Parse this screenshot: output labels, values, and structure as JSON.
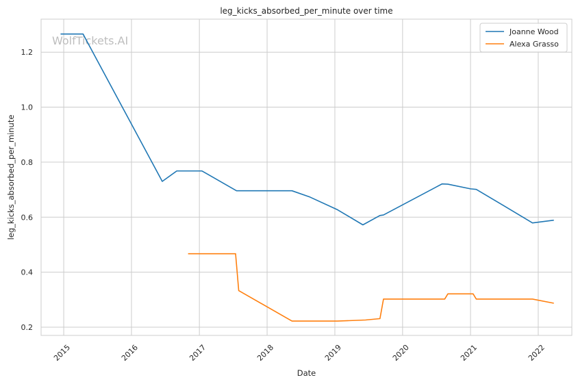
{
  "chart_data": {
    "type": "line",
    "title": "leg_kicks_absorbed_per_minute over time",
    "xlabel": "Date",
    "ylabel": "leg_kicks_absorbed_per_minute",
    "watermark": "WolfTickets.AI",
    "xlim": [
      "2014-09-01",
      "2022-07-01"
    ],
    "ylim": [
      0.17,
      1.32
    ],
    "x_ticks": [
      "2015",
      "2016",
      "2017",
      "2018",
      "2019",
      "2020",
      "2021",
      "2022"
    ],
    "y_ticks": [
      0.2,
      0.4,
      0.6,
      0.8,
      1.0,
      1.2
    ],
    "grid": true,
    "legend_position": "top-right",
    "series": [
      {
        "name": "Joanne Wood",
        "color": "#1f77b4",
        "points": [
          [
            "2014-12-15",
            1.266
          ],
          [
            "2015-04-15",
            1.266
          ],
          [
            "2016-06-15",
            0.73
          ],
          [
            "2016-09-01",
            0.768
          ],
          [
            "2017-01-15",
            0.768
          ],
          [
            "2017-07-20",
            0.696
          ],
          [
            "2018-05-15",
            0.696
          ],
          [
            "2018-08-20",
            0.673
          ],
          [
            "2019-01-15",
            0.627
          ],
          [
            "2019-06-01",
            0.572
          ],
          [
            "2019-09-01",
            0.606
          ],
          [
            "2019-09-20",
            0.608
          ],
          [
            "2020-08-01",
            0.721
          ],
          [
            "2020-09-01",
            0.72
          ],
          [
            "2021-01-01",
            0.703
          ],
          [
            "2021-02-01",
            0.701
          ],
          [
            "2021-07-01",
            0.641
          ],
          [
            "2021-12-01",
            0.579
          ],
          [
            "2022-03-26",
            0.589
          ]
        ]
      },
      {
        "name": "Alexa Grasso",
        "color": "#ff7f0e",
        "points": [
          [
            "2016-11-01",
            0.467
          ],
          [
            "2017-07-15",
            0.467
          ],
          [
            "2017-08-01",
            0.333
          ],
          [
            "2018-05-15",
            0.222
          ],
          [
            "2019-01-15",
            0.222
          ],
          [
            "2019-06-15",
            0.226
          ],
          [
            "2019-09-01",
            0.231
          ],
          [
            "2019-09-20",
            0.302
          ],
          [
            "2020-08-15",
            0.302
          ],
          [
            "2020-09-01",
            0.321
          ],
          [
            "2021-01-15",
            0.321
          ],
          [
            "2021-02-01",
            0.302
          ],
          [
            "2021-12-01",
            0.302
          ],
          [
            "2022-03-26",
            0.287
          ]
        ]
      }
    ]
  }
}
